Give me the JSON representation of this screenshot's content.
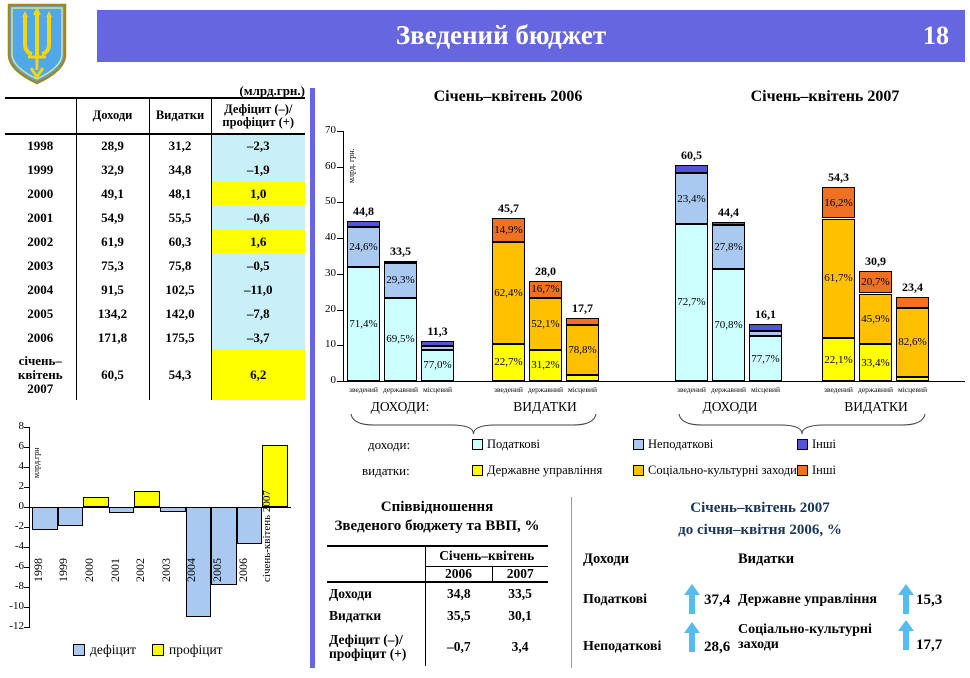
{
  "header": {
    "title": "Зведений бюджет",
    "page_number": "18",
    "banner_color": "#6666E0",
    "logo": "ukraine-trident-coat-of-arms"
  },
  "budget_table": {
    "units_note": "(млрд.грн.)",
    "columns": [
      "",
      "Доходи",
      "Видатки",
      "Дефіцит (–)/ профіцит (+)"
    ],
    "deficit_color": "#C9F0F8",
    "surplus_color": "#FFFF00",
    "rows": [
      {
        "year": "1998",
        "revenue": "28,9",
        "expenditure": "31,2",
        "balance": "–2,3",
        "balance_type": "deficit"
      },
      {
        "year": "1999",
        "revenue": "32,9",
        "expenditure": "34,8",
        "balance": "–1,9",
        "balance_type": "deficit"
      },
      {
        "year": "2000",
        "revenue": "49,1",
        "expenditure": "48,1",
        "balance": "1,0",
        "balance_type": "surplus"
      },
      {
        "year": "2001",
        "revenue": "54,9",
        "expenditure": "55,5",
        "balance": "–0,6",
        "balance_type": "deficit"
      },
      {
        "year": "2002",
        "revenue": "61,9",
        "expenditure": "60,3",
        "balance": "1,6",
        "balance_type": "surplus"
      },
      {
        "year": "2003",
        "revenue": "75,3",
        "expenditure": "75,8",
        "balance": "–0,5",
        "balance_type": "deficit"
      },
      {
        "year": "2004",
        "revenue": "91,5",
        "expenditure": "102,5",
        "balance": "–11,0",
        "balance_type": "deficit"
      },
      {
        "year": "2005",
        "revenue": "134,2",
        "expenditure": "142,0",
        "balance": "–7,8",
        "balance_type": "deficit"
      },
      {
        "year": "2006",
        "revenue": "171,8",
        "expenditure": "175,5",
        "balance": "–3,7",
        "balance_type": "deficit"
      },
      {
        "year": "січень–квітень 2007",
        "revenue": "60,5",
        "expenditure": "54,3",
        "balance": "6,2",
        "balance_type": "surplus"
      }
    ]
  },
  "palette": {
    "income": [
      "#CCFFFF",
      "#A9C9F0",
      "#5353D6"
    ],
    "expense": [
      "#FFFF00",
      "#FFC000",
      "#F07122"
    ]
  },
  "main_legend": {
    "rows": [
      {
        "label": "доходи:",
        "items": [
          {
            "name": "Податкові",
            "color": "#CCFFFF"
          },
          {
            "name": "Неподаткові",
            "color": "#A9C9F0"
          },
          {
            "name": "Інші",
            "color": "#5353D6"
          }
        ]
      },
      {
        "label": "видатки:",
        "items": [
          {
            "name": "Державне управління",
            "color": "#FFFF00"
          },
          {
            "name": "Соціально-культурні заходи",
            "color": "#FFC000"
          },
          {
            "name": "Інші",
            "color": "#F07122"
          }
        ]
      }
    ]
  },
  "chart_data": [
    {
      "id": "stacked_2006",
      "type": "bar",
      "title": "Січень–квітень 2006",
      "ylabel": "млрд. грн.",
      "ylim": [
        0,
        70
      ],
      "yticks": [
        0,
        10,
        20,
        30,
        40,
        50,
        60,
        70
      ],
      "groups": [
        {
          "label": "ДОХОДИ:",
          "palette": "income",
          "bars": [
            {
              "category": "зведений",
              "total": 44.8,
              "total_label": "44,8",
              "segments": [
                {
                  "name": "Податкові",
                  "pct": 71.4,
                  "label": "71,4%"
                },
                {
                  "name": "Неподаткові",
                  "pct": 24.6,
                  "label": "24,6%"
                },
                {
                  "name": "Інші",
                  "pct": 4.0,
                  "label": ""
                }
              ]
            },
            {
              "category": "державний",
              "total": 33.5,
              "total_label": "33,5",
              "segments": [
                {
                  "name": "Податкові",
                  "pct": 69.5,
                  "label": "69,5%"
                },
                {
                  "name": "Неподаткові",
                  "pct": 29.3,
                  "label": "29,3%"
                },
                {
                  "name": "Інші",
                  "pct": 1.2,
                  "label": ""
                }
              ]
            },
            {
              "category": "місцевий",
              "total": 11.3,
              "total_label": "11,3",
              "segments": [
                {
                  "name": "Податкові",
                  "pct": 77.0,
                  "label": "77,0%"
                },
                {
                  "name": "Неподаткові",
                  "pct": 10.0,
                  "label": ""
                },
                {
                  "name": "Інші",
                  "pct": 13.0,
                  "label": ""
                }
              ]
            }
          ]
        },
        {
          "label": "ВИДАТКИ",
          "palette": "expense",
          "bars": [
            {
              "category": "зведений",
              "total": 45.7,
              "total_label": "45,7",
              "segments": [
                {
                  "name": "Державне управління",
                  "pct": 22.7,
                  "label": "22,7%"
                },
                {
                  "name": "Соціально-культурні заходи",
                  "pct": 62.4,
                  "label": "62,4%"
                },
                {
                  "name": "Інші",
                  "pct": 14.9,
                  "label": "14,9%"
                }
              ]
            },
            {
              "category": "державний",
              "total": 28.0,
              "total_label": "28,0",
              "segments": [
                {
                  "name": "Державне управління",
                  "pct": 31.2,
                  "label": "31,2%"
                },
                {
                  "name": "Соціально-культурні заходи",
                  "pct": 52.1,
                  "label": "52,1%"
                },
                {
                  "name": "Інші",
                  "pct": 16.7,
                  "label": "16,7%"
                }
              ]
            },
            {
              "category": "місцевий",
              "total": 17.7,
              "total_label": "17,7",
              "segments": [
                {
                  "name": "Державне управління",
                  "pct": 9.5,
                  "label": ""
                },
                {
                  "name": "Соціально-культурні заходи",
                  "pct": 78.8,
                  "label": "78,8%"
                },
                {
                  "name": "Інші",
                  "pct": 11.7,
                  "label": ""
                }
              ]
            }
          ]
        }
      ]
    },
    {
      "id": "stacked_2007",
      "type": "bar",
      "title": "Січень–квітень 2007",
      "ylim": [
        0,
        70
      ],
      "groups": [
        {
          "label": "ДОХОДИ",
          "palette": "income",
          "bars": [
            {
              "category": "зведений",
              "total": 60.5,
              "total_label": "60,5",
              "segments": [
                {
                  "name": "Податкові",
                  "pct": 72.7,
                  "label": "72,7%"
                },
                {
                  "name": "Неподаткові",
                  "pct": 23.4,
                  "label": "23,4%"
                },
                {
                  "name": "Інші",
                  "pct": 3.9,
                  "label": ""
                }
              ]
            },
            {
              "category": "державний",
              "total": 44.4,
              "total_label": "44,4",
              "segments": [
                {
                  "name": "Податкові",
                  "pct": 70.8,
                  "label": "70,8%"
                },
                {
                  "name": "Неподаткові",
                  "pct": 27.8,
                  "label": "27,8%"
                },
                {
                  "name": "Інші",
                  "pct": 1.4,
                  "label": ""
                }
              ]
            },
            {
              "category": "місцевий",
              "total": 16.1,
              "total_label": "16,1",
              "segments": [
                {
                  "name": "Податкові",
                  "pct": 77.7,
                  "label": "77,7%"
                },
                {
                  "name": "Неподаткові",
                  "pct": 9.3,
                  "label": ""
                },
                {
                  "name": "Інші",
                  "pct": 13.0,
                  "label": ""
                }
              ]
            }
          ]
        },
        {
          "label": "ВИДАТКИ",
          "palette": "expense",
          "bars": [
            {
              "category": "зведений",
              "total": 54.3,
              "total_label": "54,3",
              "segments": [
                {
                  "name": "Державне управління",
                  "pct": 22.1,
                  "label": "22,1%"
                },
                {
                  "name": "Соціально-культурні заходи",
                  "pct": 61.7,
                  "label": "61,7%"
                },
                {
                  "name": "Інші",
                  "pct": 16.2,
                  "label": "16,2%"
                }
              ]
            },
            {
              "category": "державний",
              "total": 30.9,
              "total_label": "30,9",
              "segments": [
                {
                  "name": "Державне управління",
                  "pct": 33.4,
                  "label": "33,4%"
                },
                {
                  "name": "Соціально-культурні заходи",
                  "pct": 45.9,
                  "label": "45,9%"
                },
                {
                  "name": "Інші",
                  "pct": 20.7,
                  "label": "20,7%"
                }
              ]
            },
            {
              "category": "місцевий",
              "total": 23.4,
              "total_label": "23,4",
              "segments": [
                {
                  "name": "Державне управління",
                  "pct": 4.8,
                  "label": ""
                },
                {
                  "name": "Соціально-культурні заходи",
                  "pct": 82.6,
                  "label": "82,6%"
                },
                {
                  "name": "Інші",
                  "pct": 12.6,
                  "label": ""
                }
              ]
            }
          ]
        }
      ]
    },
    {
      "id": "balance_by_year",
      "type": "bar",
      "ylabel": "млрд.грн",
      "ylim": [
        -12,
        8
      ],
      "yticks": [
        8,
        6,
        4,
        2,
        0,
        -2,
        -4,
        -6,
        -8,
        -10,
        -12
      ],
      "categories": [
        "1998",
        "1999",
        "2000",
        "2001",
        "2002",
        "2003",
        "2004",
        "2005",
        "2006",
        "січень-квітень 2007"
      ],
      "values": [
        -2.3,
        -1.9,
        1.0,
        -0.6,
        1.6,
        -0.5,
        -11.0,
        -7.8,
        -3.7,
        6.2
      ],
      "deficit_color": "#A9C9F0",
      "surplus_color": "#FFFF00",
      "legend": [
        {
          "label": "дефіцит",
          "color": "#A9C9F0"
        },
        {
          "label": "профіцит",
          "color": "#FFFF00"
        }
      ]
    }
  ],
  "gdp_table": {
    "title_line1": "Співвідношення",
    "title_line2": "Зведеного бюджету та ВВП, %",
    "period_header": "Січень–квітень",
    "year_columns": [
      "2006",
      "2007"
    ],
    "rows": [
      {
        "label": "Доходи",
        "v2006": "34,8",
        "v2007": "33,5"
      },
      {
        "label": "Видатки",
        "v2006": "35,5",
        "v2007": "30,1"
      },
      {
        "label": "Дефіцит (–)/ профіцит (+)",
        "v2006": "–0,7",
        "v2007": "3,4"
      }
    ]
  },
  "growth_panel": {
    "title_line1": "Січень–квітень 2007",
    "title_line2": "до січня–квітня 2006, %",
    "left_header": "Доходи",
    "right_header": "Видатки",
    "arrow_color": "#56BCEE",
    "items_left": [
      {
        "label": "Податкові",
        "value": "37,4",
        "direction": "up"
      },
      {
        "label": "Неподаткові",
        "value": "28,6",
        "direction": "up"
      }
    ],
    "items_right": [
      {
        "label": "Державне управління",
        "value": "15,3",
        "direction": "up"
      },
      {
        "label": "Соціально-культурні заходи",
        "value": "17,7",
        "direction": "up"
      }
    ]
  }
}
